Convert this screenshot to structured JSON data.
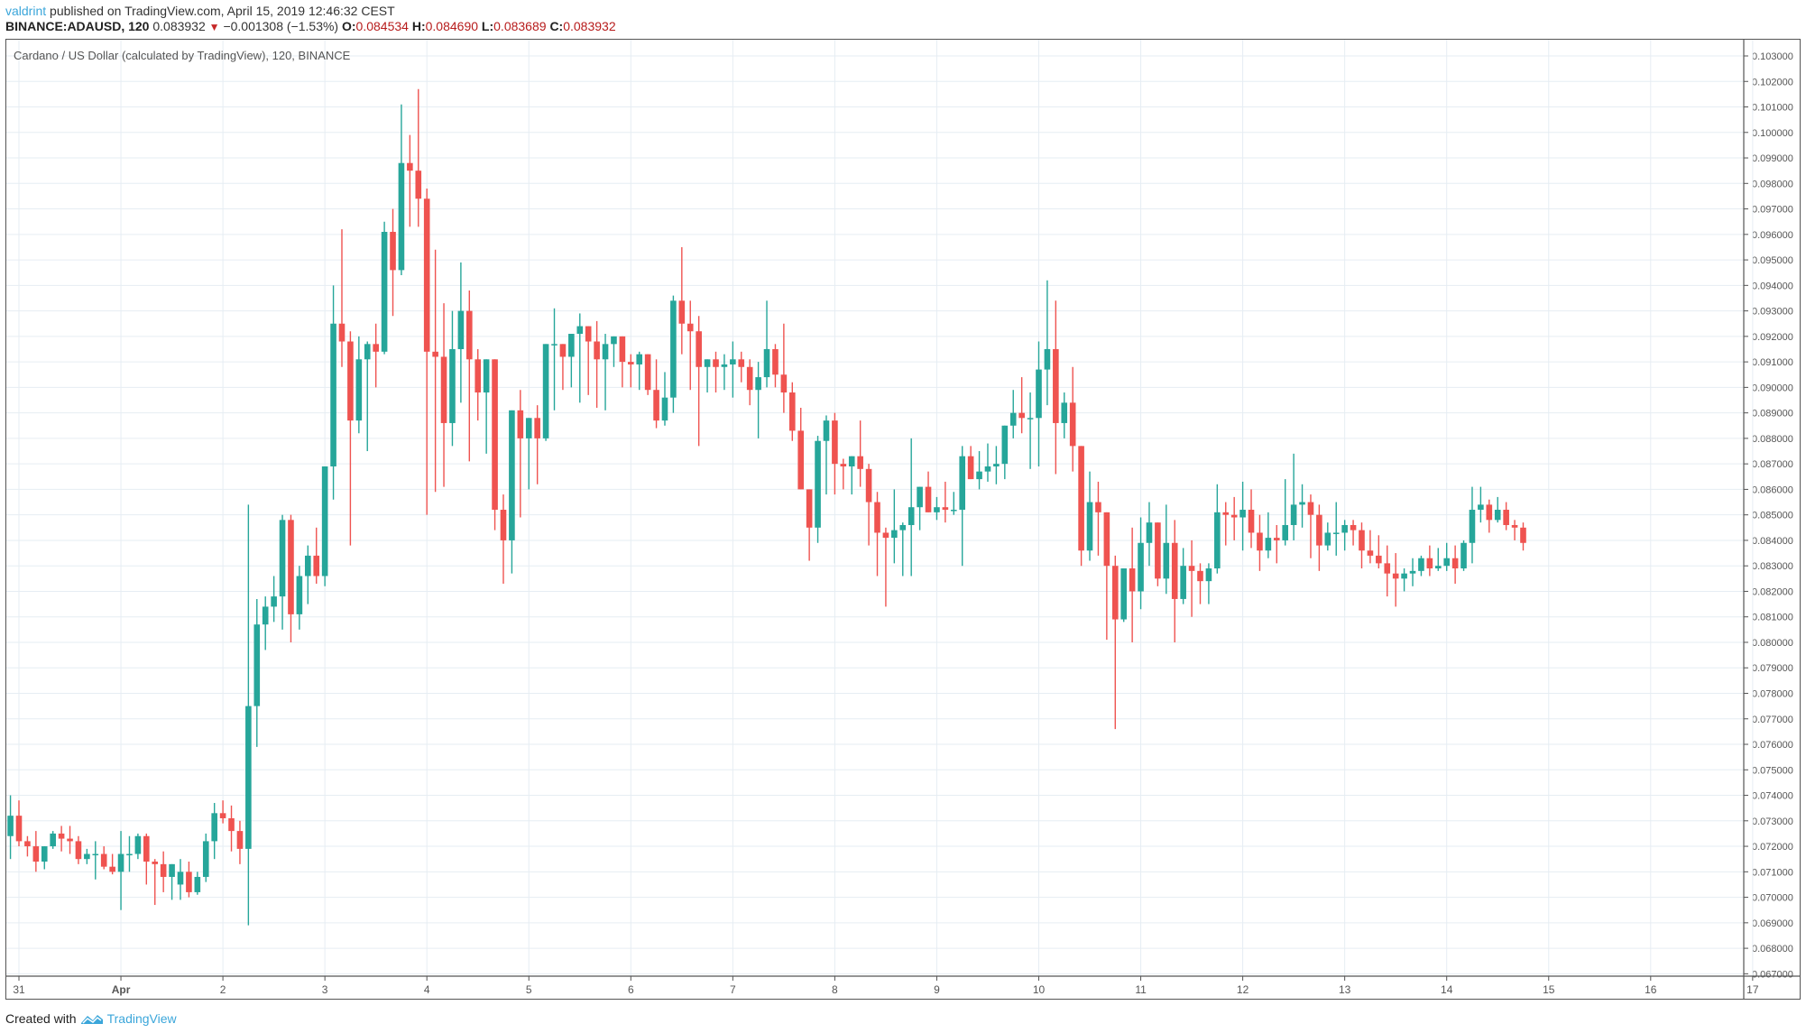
{
  "header": {
    "user": "valdrint",
    "published_text": "published on TradingView.com, April 15, 2019 12:46:32 CEST",
    "symbol": "BINANCE:ADAUSD, 120",
    "last": "0.083932",
    "change": "−0.001308 (−1.53%)",
    "open_label": "O:",
    "open": "0.084534",
    "high_label": "H:",
    "high": "0.084690",
    "low_label": "L:",
    "low": "0.083689",
    "close_label": "C:",
    "close": "0.083932"
  },
  "footer": {
    "created_with": "Created with",
    "brand": "TradingView"
  },
  "colors": {
    "up": "#26a69a",
    "down": "#ef5350",
    "grid": "#e6edf3",
    "axis": "#555555",
    "brand": "#3ba6da"
  },
  "chart_data": {
    "type": "candlestick",
    "title": "Cardano / US Dollar (calculated by TradingView), 120, BINANCE",
    "interval": "120",
    "xlabel": "",
    "ylabel": "",
    "ylim": [
      0.067,
      0.103
    ],
    "grid": true,
    "y_ticks": [
      "0.103000",
      "0.102000",
      "0.101000",
      "0.100000",
      "0.099000",
      "0.098000",
      "0.097000",
      "0.096000",
      "0.095000",
      "0.094000",
      "0.093000",
      "0.092000",
      "0.091000",
      "0.090000",
      "0.089000",
      "0.088000",
      "0.087000",
      "0.086000",
      "0.085000",
      "0.084000",
      "0.083000",
      "0.082000",
      "0.081000",
      "0.080000",
      "0.079000",
      "0.078000",
      "0.077000",
      "0.076000",
      "0.075000",
      "0.074000",
      "0.073000",
      "0.072000",
      "0.071000",
      "0.070000",
      "0.069000",
      "0.068000",
      "0.067000"
    ],
    "x_ticks": [
      {
        "label": "31",
        "bold": false
      },
      {
        "label": "Apr",
        "bold": true
      },
      {
        "label": "2",
        "bold": false
      },
      {
        "label": "3",
        "bold": false
      },
      {
        "label": "4",
        "bold": false
      },
      {
        "label": "5",
        "bold": false
      },
      {
        "label": "6",
        "bold": false
      },
      {
        "label": "7",
        "bold": false
      },
      {
        "label": "8",
        "bold": false
      },
      {
        "label": "9",
        "bold": false
      },
      {
        "label": "10",
        "bold": false
      },
      {
        "label": "11",
        "bold": false
      },
      {
        "label": "12",
        "bold": false
      },
      {
        "label": "13",
        "bold": false
      },
      {
        "label": "14",
        "bold": false
      },
      {
        "label": "15",
        "bold": false
      },
      {
        "label": "16",
        "bold": false
      },
      {
        "label": "17",
        "bold": false
      }
    ],
    "candles_ohlc": [
      [
        0.0724,
        0.074,
        0.0715,
        0.0732
      ],
      [
        0.0732,
        0.0738,
        0.072,
        0.0722
      ],
      [
        0.0722,
        0.0724,
        0.0716,
        0.072
      ],
      [
        0.072,
        0.0726,
        0.071,
        0.0714
      ],
      [
        0.0714,
        0.072,
        0.0711,
        0.072
      ],
      [
        0.072,
        0.0726,
        0.0719,
        0.0725
      ],
      [
        0.0725,
        0.0728,
        0.0718,
        0.0723
      ],
      [
        0.0723,
        0.0728,
        0.0717,
        0.0722
      ],
      [
        0.0722,
        0.0724,
        0.0713,
        0.0715
      ],
      [
        0.0715,
        0.0719,
        0.0713,
        0.0717
      ],
      [
        0.0717,
        0.0722,
        0.0707,
        0.0717
      ],
      [
        0.0717,
        0.072,
        0.0711,
        0.0712
      ],
      [
        0.0712,
        0.0717,
        0.0709,
        0.071
      ],
      [
        0.071,
        0.0726,
        0.0695,
        0.0717
      ],
      [
        0.0717,
        0.0724,
        0.071,
        0.0717
      ],
      [
        0.0717,
        0.0725,
        0.0715,
        0.0724
      ],
      [
        0.0724,
        0.0725,
        0.0705,
        0.0714
      ],
      [
        0.0714,
        0.0715,
        0.0697,
        0.0713
      ],
      [
        0.0713,
        0.0718,
        0.0702,
        0.0708
      ],
      [
        0.0708,
        0.0713,
        0.0699,
        0.0713
      ],
      [
        0.0705,
        0.0715,
        0.0699,
        0.071
      ],
      [
        0.071,
        0.0714,
        0.07,
        0.0702
      ],
      [
        0.0702,
        0.071,
        0.0701,
        0.0708
      ],
      [
        0.0708,
        0.0725,
        0.0706,
        0.0722
      ],
      [
        0.0722,
        0.0737,
        0.0715,
        0.0733
      ],
      [
        0.0733,
        0.0738,
        0.0729,
        0.0731
      ],
      [
        0.0731,
        0.0736,
        0.0718,
        0.0726
      ],
      [
        0.0726,
        0.073,
        0.0713,
        0.0719
      ],
      [
        0.0719,
        0.0854,
        0.0689,
        0.0775
      ],
      [
        0.0775,
        0.0817,
        0.0759,
        0.0807
      ],
      [
        0.0807,
        0.0818,
        0.0797,
        0.0814
      ],
      [
        0.0814,
        0.0826,
        0.0808,
        0.0818
      ],
      [
        0.0818,
        0.085,
        0.0805,
        0.0848
      ],
      [
        0.0848,
        0.085,
        0.08,
        0.0811
      ],
      [
        0.0811,
        0.083,
        0.0805,
        0.0826
      ],
      [
        0.0826,
        0.0838,
        0.0815,
        0.0834
      ],
      [
        0.0834,
        0.0845,
        0.0823,
        0.0826
      ],
      [
        0.0826,
        0.0868,
        0.0822,
        0.0869
      ],
      [
        0.0869,
        0.094,
        0.0856,
        0.0925
      ],
      [
        0.0925,
        0.0962,
        0.0908,
        0.0918
      ],
      [
        0.0918,
        0.0922,
        0.0838,
        0.0887
      ],
      [
        0.0887,
        0.092,
        0.0882,
        0.0911
      ],
      [
        0.0911,
        0.0918,
        0.0875,
        0.0917
      ],
      [
        0.0917,
        0.0925,
        0.09,
        0.0914
      ],
      [
        0.0914,
        0.0965,
        0.0913,
        0.0961
      ],
      [
        0.0961,
        0.097,
        0.0928,
        0.0946
      ],
      [
        0.0946,
        0.1011,
        0.0944,
        0.0988
      ],
      [
        0.0988,
        0.0999,
        0.0963,
        0.0985
      ],
      [
        0.0985,
        0.1017,
        0.0963,
        0.0974
      ],
      [
        0.0974,
        0.0978,
        0.085,
        0.0914
      ],
      [
        0.0914,
        0.0954,
        0.0859,
        0.0912
      ],
      [
        0.0912,
        0.0933,
        0.0861,
        0.0886
      ],
      [
        0.0886,
        0.093,
        0.0877,
        0.0915
      ],
      [
        0.0915,
        0.0949,
        0.0894,
        0.093
      ],
      [
        0.093,
        0.0938,
        0.0871,
        0.0911
      ],
      [
        0.0911,
        0.0915,
        0.0887,
        0.0898
      ],
      [
        0.0898,
        0.0911,
        0.0874,
        0.0911
      ],
      [
        0.0911,
        0.0908,
        0.0844,
        0.0852
      ],
      [
        0.0852,
        0.0858,
        0.0823,
        0.084
      ],
      [
        0.084,
        0.0891,
        0.0827,
        0.0891
      ],
      [
        0.0891,
        0.0899,
        0.0849,
        0.088
      ],
      [
        0.088,
        0.088,
        0.086,
        0.0888
      ],
      [
        0.0888,
        0.0893,
        0.0862,
        0.088
      ],
      [
        0.088,
        0.0917,
        0.0879,
        0.0917
      ],
      [
        0.0917,
        0.0931,
        0.0891,
        0.0917
      ],
      [
        0.0917,
        0.0917,
        0.0899,
        0.0912
      ],
      [
        0.0912,
        0.092,
        0.09,
        0.0921
      ],
      [
        0.0921,
        0.0929,
        0.0894,
        0.0924
      ],
      [
        0.0924,
        0.0919,
        0.0897,
        0.0918
      ],
      [
        0.0918,
        0.0926,
        0.0892,
        0.0911
      ],
      [
        0.0911,
        0.0921,
        0.0891,
        0.0917
      ],
      [
        0.0917,
        0.0916,
        0.0908,
        0.092
      ],
      [
        0.092,
        0.0918,
        0.09,
        0.091
      ],
      [
        0.091,
        0.0913,
        0.09,
        0.0909
      ],
      [
        0.0909,
        0.0914,
        0.0899,
        0.0913
      ],
      [
        0.0913,
        0.0909,
        0.0897,
        0.0899
      ],
      [
        0.0899,
        0.0911,
        0.0884,
        0.0887
      ],
      [
        0.0887,
        0.0906,
        0.0885,
        0.0896
      ],
      [
        0.0896,
        0.0936,
        0.089,
        0.0934
      ],
      [
        0.0934,
        0.0955,
        0.0913,
        0.0925
      ],
      [
        0.0925,
        0.0934,
        0.0899,
        0.0922
      ],
      [
        0.0922,
        0.0928,
        0.0877,
        0.0908
      ],
      [
        0.0908,
        0.091,
        0.0898,
        0.0911
      ],
      [
        0.0911,
        0.0914,
        0.0898,
        0.0908
      ],
      [
        0.0908,
        0.0913,
        0.0899,
        0.0909
      ],
      [
        0.0909,
        0.0918,
        0.0896,
        0.0911
      ],
      [
        0.0911,
        0.0914,
        0.0902,
        0.0908
      ],
      [
        0.0908,
        0.0911,
        0.0893,
        0.0899
      ],
      [
        0.0899,
        0.091,
        0.088,
        0.0904
      ],
      [
        0.0904,
        0.0934,
        0.09,
        0.0915
      ],
      [
        0.0915,
        0.0917,
        0.09,
        0.0905
      ],
      [
        0.0905,
        0.0925,
        0.089,
        0.0898
      ],
      [
        0.0898,
        0.0902,
        0.0879,
        0.0883
      ],
      [
        0.0883,
        0.0892,
        0.0873,
        0.086
      ],
      [
        0.086,
        0.0857,
        0.0832,
        0.0845
      ],
      [
        0.0845,
        0.0881,
        0.0839,
        0.0879
      ],
      [
        0.0879,
        0.0889,
        0.0858,
        0.0887
      ],
      [
        0.0887,
        0.089,
        0.0858,
        0.087
      ],
      [
        0.087,
        0.0872,
        0.086,
        0.0869
      ],
      [
        0.0869,
        0.0873,
        0.0858,
        0.0873
      ],
      [
        0.0873,
        0.0887,
        0.0861,
        0.0868
      ],
      [
        0.0868,
        0.087,
        0.0838,
        0.0855
      ],
      [
        0.0855,
        0.0859,
        0.0826,
        0.0843
      ],
      [
        0.0843,
        0.0845,
        0.0814,
        0.0841
      ],
      [
        0.0841,
        0.086,
        0.0831,
        0.0844
      ],
      [
        0.0844,
        0.0847,
        0.0826,
        0.0846
      ],
      [
        0.0846,
        0.088,
        0.0826,
        0.0853
      ],
      [
        0.0853,
        0.0858,
        0.0844,
        0.0861
      ],
      [
        0.0861,
        0.0867,
        0.0852,
        0.0851
      ],
      [
        0.0851,
        0.0857,
        0.0848,
        0.0853
      ],
      [
        0.0853,
        0.0863,
        0.0847,
        0.0852
      ],
      [
        0.0852,
        0.0859,
        0.085,
        0.0852
      ],
      [
        0.0852,
        0.0877,
        0.083,
        0.0873
      ],
      [
        0.0873,
        0.0877,
        0.0864,
        0.0864
      ],
      [
        0.0864,
        0.0875,
        0.086,
        0.0867
      ],
      [
        0.0867,
        0.0878,
        0.0863,
        0.0869
      ],
      [
        0.0869,
        0.0877,
        0.0862,
        0.087
      ],
      [
        0.087,
        0.0881,
        0.0864,
        0.0885
      ],
      [
        0.0885,
        0.0899,
        0.088,
        0.089
      ],
      [
        0.089,
        0.0904,
        0.0882,
        0.0888
      ],
      [
        0.0888,
        0.0898,
        0.0868,
        0.0888
      ],
      [
        0.0888,
        0.0918,
        0.0869,
        0.0907
      ],
      [
        0.0907,
        0.0942,
        0.0893,
        0.0915
      ],
      [
        0.0915,
        0.0934,
        0.0866,
        0.0886
      ],
      [
        0.0886,
        0.0898,
        0.088,
        0.0894
      ],
      [
        0.0894,
        0.0908,
        0.0867,
        0.0877
      ],
      [
        0.0877,
        0.0874,
        0.083,
        0.0836
      ],
      [
        0.0836,
        0.0867,
        0.0832,
        0.0855
      ],
      [
        0.0855,
        0.0863,
        0.0834,
        0.0851
      ],
      [
        0.0851,
        0.0849,
        0.0801,
        0.083
      ],
      [
        0.083,
        0.0834,
        0.0766,
        0.0809
      ],
      [
        0.0809,
        0.0825,
        0.0808,
        0.0829
      ],
      [
        0.0829,
        0.0845,
        0.08,
        0.082
      ],
      [
        0.082,
        0.0849,
        0.0813,
        0.0839
      ],
      [
        0.0839,
        0.0855,
        0.083,
        0.0847
      ],
      [
        0.0847,
        0.0846,
        0.0822,
        0.0825
      ],
      [
        0.0825,
        0.0854,
        0.0819,
        0.0839
      ],
      [
        0.0839,
        0.0848,
        0.08,
        0.0817
      ],
      [
        0.0817,
        0.0837,
        0.0815,
        0.083
      ],
      [
        0.083,
        0.084,
        0.081,
        0.0828
      ],
      [
        0.0828,
        0.0831,
        0.0815,
        0.0824
      ],
      [
        0.0824,
        0.0831,
        0.0815,
        0.0829
      ],
      [
        0.0829,
        0.0862,
        0.0827,
        0.0851
      ],
      [
        0.0851,
        0.0855,
        0.0838,
        0.085
      ],
      [
        0.085,
        0.0857,
        0.084,
        0.0849
      ],
      [
        0.0849,
        0.0863,
        0.0836,
        0.0852
      ],
      [
        0.0852,
        0.086,
        0.0837,
        0.0843
      ],
      [
        0.0843,
        0.085,
        0.0828,
        0.0836
      ],
      [
        0.0836,
        0.0851,
        0.0833,
        0.0841
      ],
      [
        0.0841,
        0.0846,
        0.0831,
        0.084
      ],
      [
        0.084,
        0.0864,
        0.0838,
        0.0846
      ],
      [
        0.0846,
        0.0874,
        0.084,
        0.0854
      ],
      [
        0.0854,
        0.0862,
        0.0845,
        0.0855
      ],
      [
        0.0855,
        0.0858,
        0.0833,
        0.085
      ],
      [
        0.085,
        0.0854,
        0.0828,
        0.0838
      ],
      [
        0.0838,
        0.0847,
        0.0836,
        0.0843
      ],
      [
        0.0843,
        0.0855,
        0.0834,
        0.0843
      ],
      [
        0.0843,
        0.0848,
        0.0836,
        0.0846
      ],
      [
        0.0846,
        0.0848,
        0.0838,
        0.0844
      ],
      [
        0.0844,
        0.0847,
        0.0829,
        0.0836
      ],
      [
        0.0836,
        0.0844,
        0.0831,
        0.0834
      ],
      [
        0.0834,
        0.0842,
        0.0829,
        0.0831
      ],
      [
        0.0831,
        0.0838,
        0.0818,
        0.0827
      ],
      [
        0.0827,
        0.0835,
        0.0814,
        0.0825
      ],
      [
        0.0825,
        0.0829,
        0.082,
        0.0827
      ],
      [
        0.0827,
        0.0833,
        0.0822,
        0.0828
      ],
      [
        0.0828,
        0.0834,
        0.0826,
        0.0833
      ],
      [
        0.0833,
        0.0838,
        0.0826,
        0.0829
      ],
      [
        0.0829,
        0.0837,
        0.0828,
        0.083
      ],
      [
        0.083,
        0.0839,
        0.0828,
        0.0833
      ],
      [
        0.0833,
        0.0838,
        0.0823,
        0.0829
      ],
      [
        0.0829,
        0.084,
        0.0828,
        0.0839
      ],
      [
        0.0839,
        0.0861,
        0.0831,
        0.0852
      ],
      [
        0.0852,
        0.0861,
        0.0847,
        0.0854
      ],
      [
        0.0854,
        0.0856,
        0.0843,
        0.0848
      ],
      [
        0.0848,
        0.0857,
        0.0847,
        0.0852
      ],
      [
        0.0852,
        0.0855,
        0.0844,
        0.0846
      ],
      [
        0.0846,
        0.0848,
        0.084,
        0.0845
      ],
      [
        0.0845,
        0.0847,
        0.0836,
        0.0839
      ]
    ]
  }
}
